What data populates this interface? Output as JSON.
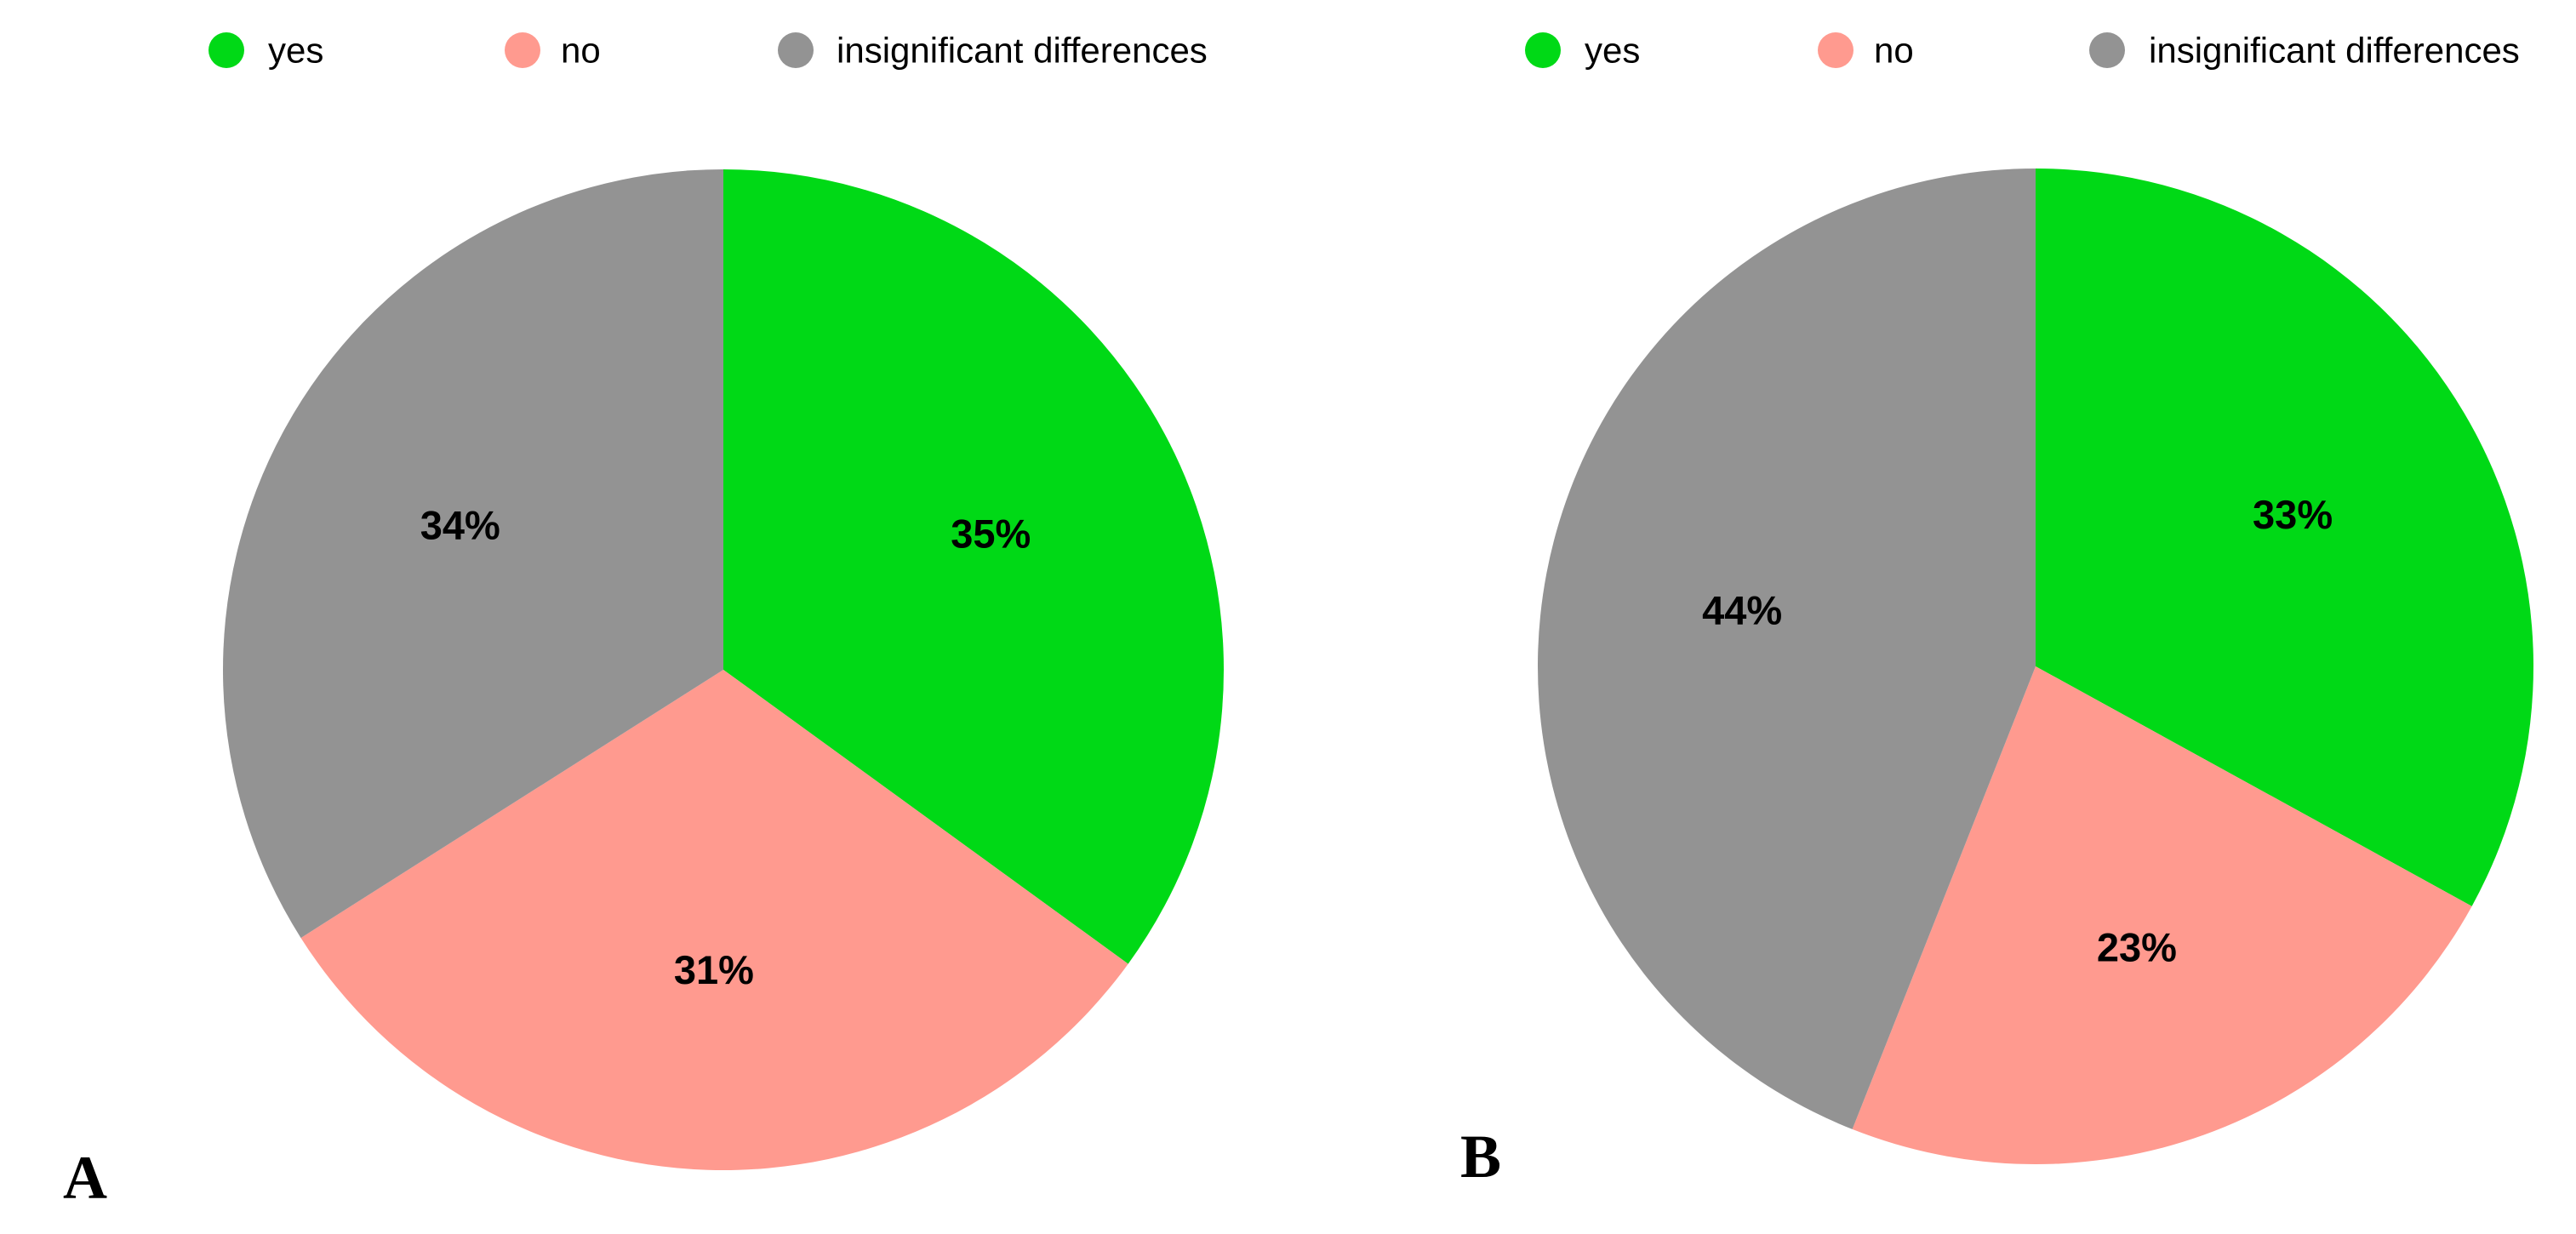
{
  "chart_data": [
    {
      "type": "pie",
      "panel_label": "A",
      "legend_placement": "top",
      "categories": [
        "yes",
        "no",
        "insignificant differences"
      ],
      "values": [
        35,
        31,
        34
      ],
      "value_labels": [
        "35%",
        "31%",
        "34%"
      ],
      "colors": [
        "#00D916",
        "#FF9A8F",
        "#939393"
      ],
      "start_angle": "12 o'clock",
      "direction": "clockwise"
    },
    {
      "type": "pie",
      "panel_label": "B",
      "legend_placement": "top",
      "categories": [
        "yes",
        "no",
        "insignificant differences"
      ],
      "values": [
        33,
        23,
        44
      ],
      "value_labels": [
        "33%",
        "23%",
        "44%"
      ],
      "colors": [
        "#00D916",
        "#FF9A8F",
        "#939393"
      ],
      "start_angle": "12 o'clock",
      "direction": "clockwise"
    }
  ]
}
